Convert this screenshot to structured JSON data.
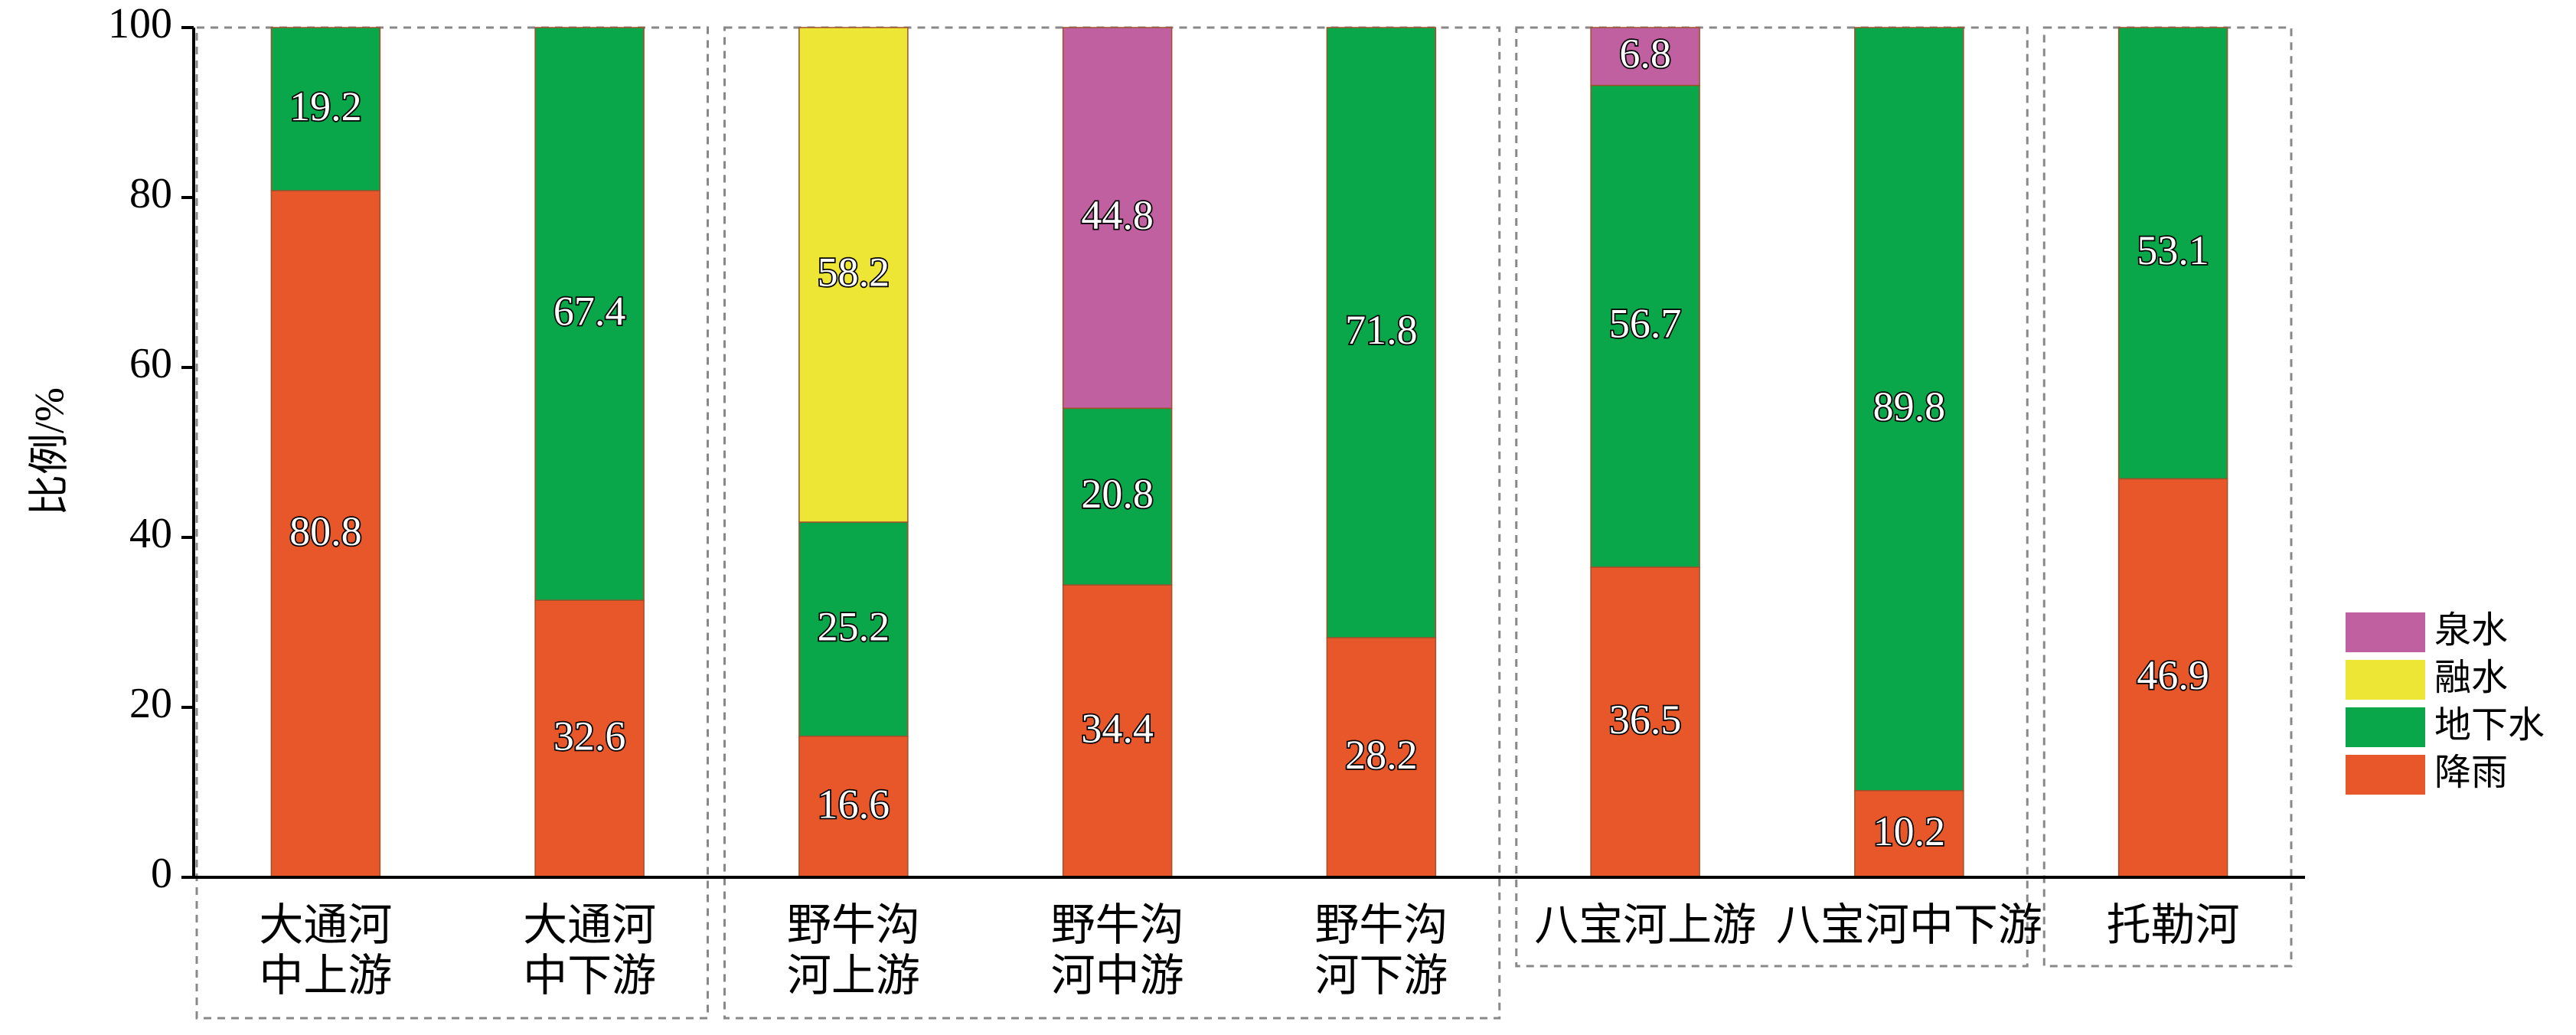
{
  "chart_data": {
    "type": "stacked_bar",
    "ylabel": "比例/%",
    "categories": [
      "大通河\n中上游",
      "大通河\n中下游",
      "野牛沟\n河上游",
      "野牛沟\n河中游",
      "野牛沟\n河下游",
      "八宝河上游",
      "八宝河中下游",
      "托勒河"
    ],
    "series": [
      {
        "name": "降雨",
        "color": "#e8572a",
        "values": [
          80.8,
          32.6,
          16.6,
          34.4,
          28.2,
          36.5,
          10.2,
          46.9
        ]
      },
      {
        "name": "地下水",
        "color": "#0aa64a",
        "values": [
          19.2,
          67.4,
          25.2,
          20.8,
          71.8,
          56.7,
          89.8,
          53.1
        ]
      },
      {
        "name": "融水",
        "color": "#ede634",
        "values": [
          null,
          null,
          58.2,
          null,
          null,
          null,
          null,
          null
        ]
      },
      {
        "name": "泉水",
        "color": "#c060a0",
        "values": [
          null,
          null,
          null,
          44.8,
          null,
          6.8,
          null,
          null
        ]
      }
    ],
    "ylim": [
      0,
      100
    ],
    "yticks": [
      0,
      20,
      40,
      60,
      80,
      100
    ],
    "legend": "right"
  }
}
